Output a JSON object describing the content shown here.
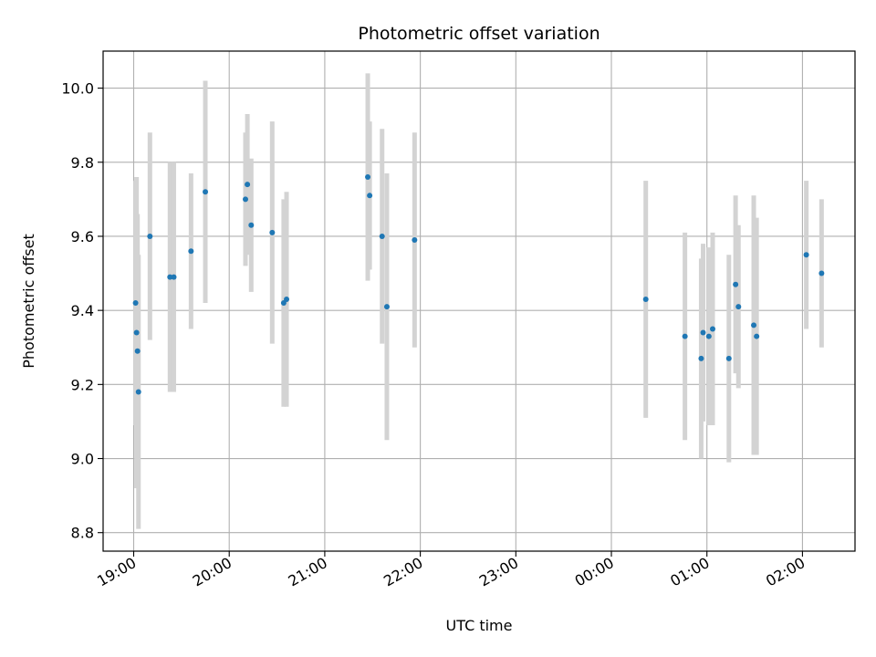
{
  "chart_data": {
    "type": "scatter",
    "title": "Photometric offset variation",
    "xlabel": "UTC time",
    "ylabel": "Photometric offset",
    "x_unit": "hours",
    "xlim": [
      18.68,
      26.55
    ],
    "ylim": [
      8.75,
      10.1
    ],
    "x_ticks": [
      19,
      20,
      21,
      22,
      23,
      24,
      25,
      26
    ],
    "x_tick_labels": [
      "19:00",
      "20:00",
      "21:00",
      "22:00",
      "23:00",
      "00:00",
      "01:00",
      "02:00"
    ],
    "y_ticks": [
      8.8,
      9.0,
      9.2,
      9.4,
      9.6,
      9.8,
      10.0
    ],
    "y_tick_labels": [
      "8.8",
      "9.0",
      "9.2",
      "9.4",
      "9.6",
      "9.8",
      "10.0"
    ],
    "grid": true,
    "marker_color": "#1f77b4",
    "errorbar_color": "#d3d3d3",
    "points": [
      {
        "x": 19.02,
        "y": 9.42,
        "err": 0.33
      },
      {
        "x": 19.03,
        "y": 9.34,
        "err": 0.42
      },
      {
        "x": 19.04,
        "y": 9.29,
        "err": 0.37
      },
      {
        "x": 19.05,
        "y": 9.18,
        "err": 0.37
      },
      {
        "x": 19.17,
        "y": 9.6,
        "err": 0.28
      },
      {
        "x": 19.38,
        "y": 9.49,
        "err": 0.31
      },
      {
        "x": 19.42,
        "y": 9.49,
        "err": 0.31
      },
      {
        "x": 19.6,
        "y": 9.56,
        "err": 0.21
      },
      {
        "x": 19.75,
        "y": 9.72,
        "err": 0.3
      },
      {
        "x": 20.17,
        "y": 9.7,
        "err": 0.18
      },
      {
        "x": 20.19,
        "y": 9.74,
        "err": 0.19
      },
      {
        "x": 20.23,
        "y": 9.63,
        "err": 0.18
      },
      {
        "x": 20.45,
        "y": 9.61,
        "err": 0.3
      },
      {
        "x": 20.57,
        "y": 9.42,
        "err": 0.28
      },
      {
        "x": 20.6,
        "y": 9.43,
        "err": 0.29
      },
      {
        "x": 21.45,
        "y": 9.76,
        "err": 0.28
      },
      {
        "x": 21.47,
        "y": 9.71,
        "err": 0.2
      },
      {
        "x": 21.6,
        "y": 9.6,
        "err": 0.29
      },
      {
        "x": 21.65,
        "y": 9.41,
        "err": 0.36
      },
      {
        "x": 21.94,
        "y": 9.59,
        "err": 0.29
      },
      {
        "x": 24.36,
        "y": 9.43,
        "err": 0.32
      },
      {
        "x": 24.77,
        "y": 9.33,
        "err": 0.28
      },
      {
        "x": 24.94,
        "y": 9.27,
        "err": 0.27
      },
      {
        "x": 24.96,
        "y": 9.34,
        "err": 0.24
      },
      {
        "x": 25.02,
        "y": 9.33,
        "err": 0.24
      },
      {
        "x": 25.06,
        "y": 9.35,
        "err": 0.26
      },
      {
        "x": 25.23,
        "y": 9.27,
        "err": 0.28
      },
      {
        "x": 25.3,
        "y": 9.47,
        "err": 0.24
      },
      {
        "x": 25.33,
        "y": 9.41,
        "err": 0.22
      },
      {
        "x": 25.49,
        "y": 9.36,
        "err": 0.35
      },
      {
        "x": 25.52,
        "y": 9.33,
        "err": 0.32
      },
      {
        "x": 26.04,
        "y": 9.55,
        "err": 0.2
      },
      {
        "x": 26.2,
        "y": 9.5,
        "err": 0.2
      }
    ]
  }
}
